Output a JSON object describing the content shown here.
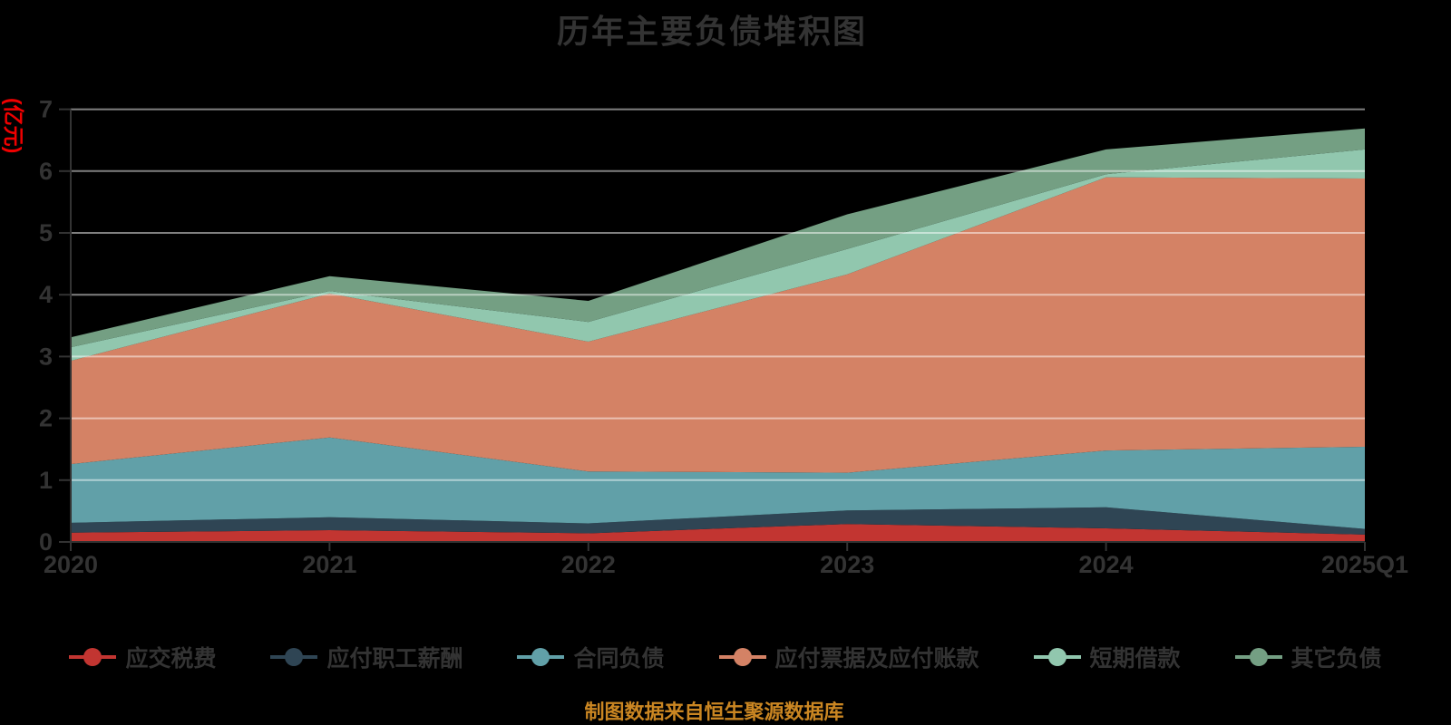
{
  "header": {
    "title": "历年主要负债堆积图"
  },
  "footer": {
    "text": "制图数据来自恒生聚源数据库",
    "color": "#ca8622"
  },
  "colors": {
    "background": "#000000",
    "text": "#333333",
    "axis_line": "#333333",
    "grid_line": "rgba(255,255,255,0.5)",
    "y_axis_name": "#ee0000"
  },
  "chart_data": {
    "type": "area",
    "stacked": true,
    "title": "历年主要负债堆积图",
    "ylabel": "(亿元)",
    "xlabel": "",
    "ylim": [
      0,
      7
    ],
    "yticks": [
      0,
      1,
      2,
      3,
      4,
      5,
      6,
      7
    ],
    "grid": true,
    "legend_position": "bottom",
    "categories": [
      "2020",
      "2021",
      "2022",
      "2023",
      "2024",
      "2025Q1"
    ],
    "series": [
      {
        "key": "tax-payable",
        "name": "应交税费",
        "color": "#c23531",
        "values": [
          0.15,
          0.19,
          0.14,
          0.29,
          0.22,
          0.12
        ]
      },
      {
        "key": "payroll-payable",
        "name": "应付职工薪酬",
        "color": "#2f4554",
        "values": [
          0.16,
          0.21,
          0.16,
          0.22,
          0.34,
          0.09
        ]
      },
      {
        "key": "contract-liabilities",
        "name": "合同负债",
        "color": "#61a0a8",
        "values": [
          0.95,
          1.29,
          0.84,
          0.61,
          0.92,
          1.33
        ]
      },
      {
        "key": "notes-accounts-payable",
        "name": "应付票据及应付账款",
        "color": "#d48265",
        "values": [
          1.67,
          2.33,
          2.1,
          3.21,
          4.42,
          4.34
        ]
      },
      {
        "key": "short-term-loans",
        "name": "短期借款",
        "color": "#91c7ae",
        "values": [
          0.22,
          0.04,
          0.32,
          0.41,
          0.05,
          0.47
        ]
      },
      {
        "key": "other-liabilities",
        "name": "其它负债",
        "color": "#749f83",
        "values": [
          0.16,
          0.24,
          0.34,
          0.56,
          0.4,
          0.34
        ]
      }
    ]
  }
}
